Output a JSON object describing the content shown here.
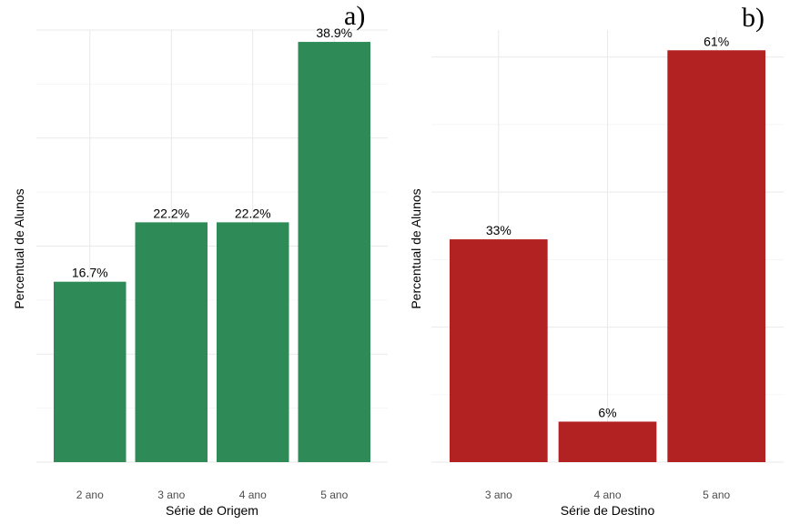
{
  "chart_data": [
    {
      "type": "bar",
      "panel_label": "a)",
      "xlabel": "Série de Origem",
      "ylabel": "Percentual de Alunos",
      "categories": [
        "2 ano",
        "3 ano",
        "4 ano",
        "5 ano"
      ],
      "values": [
        16.7,
        22.2,
        22.2,
        38.9
      ],
      "data_labels": [
        "16.7%",
        "22.2%",
        "22.2%",
        "38.9%"
      ],
      "ylim": [
        0,
        40
      ],
      "grid": true,
      "color": "#2e8b57"
    },
    {
      "type": "bar",
      "panel_label": "b)",
      "xlabel": "Série de Destino",
      "ylabel": "Percentual de Alunos",
      "categories": [
        "3 ano",
        "4 ano",
        "5 ano"
      ],
      "values": [
        33,
        6,
        61
      ],
      "data_labels": [
        "33%",
        "6%",
        "61%"
      ],
      "ylim": [
        0,
        64
      ],
      "grid": true,
      "color": "#b22222"
    }
  ]
}
